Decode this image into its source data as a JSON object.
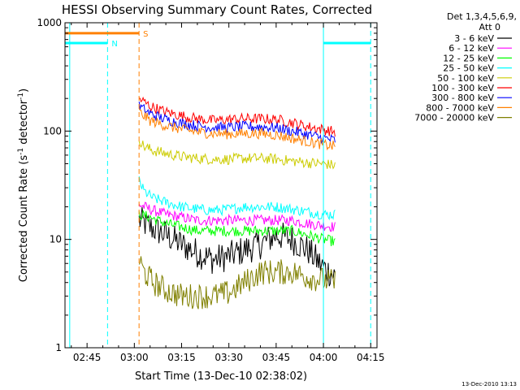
{
  "chart_data": {
    "type": "line",
    "title": "HESSI Observing Summary Count Rates, Corrected",
    "xlabel": "Start Time (13-Dec-10 02:38:02)",
    "ylabel": "Corrected Count Rate (s",
    "ylabel_sup1": "-1",
    "ylabel_mid": " detector",
    "ylabel_sup2": "-1",
    "ylabel_end": ")",
    "yscale": "log",
    "ylim": [
      1,
      1000
    ],
    "x_tick_values": [
      45,
      60,
      75,
      90,
      105,
      120,
      135
    ],
    "x_tick_labels": [
      "02:45",
      "03:00",
      "03:15",
      "03:30",
      "03:45",
      "04:00",
      "04:15"
    ],
    "xlim": [
      38,
      137
    ],
    "y_tick_values": [
      1,
      10,
      100,
      1000
    ],
    "y_tick_labels": [
      "1",
      "10",
      "100",
      "1000"
    ],
    "legend_title_1": "Det 1,3,4,5,6,9,",
    "legend_title_2": "Att 0",
    "legend_placement": "right-outside",
    "footer_date": "13-Dec-2010 13:13",
    "flags": [
      {
        "label": "N",
        "color": "#00ffff",
        "level": 650,
        "segments": [
          [
            38,
            51.5
          ],
          [
            120,
            135
          ]
        ]
      },
      {
        "label": "S",
        "color": "#ff8000",
        "level": 800,
        "segments": [
          [
            38,
            61.5
          ]
        ]
      }
    ],
    "vertical_markers": [
      {
        "x": 39.5,
        "color": "#00ffff",
        "style": "solid"
      },
      {
        "x": 51.5,
        "color": "#00ffff",
        "style": "dashed"
      },
      {
        "x": 61.5,
        "color": "#ff8000",
        "style": "dashed"
      },
      {
        "x": 120,
        "color": "#00ffff",
        "style": "solid"
      },
      {
        "x": 135,
        "color": "#00ffff",
        "style": "dashed"
      }
    ],
    "series": [
      {
        "name": "3 - 6 keV",
        "color": "#000000",
        "x": [
          61.5,
          65,
          70,
          75,
          80,
          85,
          90,
          95,
          100,
          105,
          110,
          115,
          120,
          124
        ],
        "values": [
          15,
          13,
          11,
          9,
          7.5,
          6.5,
          7,
          8,
          9,
          11,
          10,
          8,
          5.5,
          4.5
        ]
      },
      {
        "name": "6 - 12 keV",
        "color": "#ff00ff",
        "x": [
          61.5,
          65,
          70,
          75,
          80,
          85,
          90,
          95,
          100,
          105,
          110,
          115,
          120,
          124
        ],
        "values": [
          21,
          19,
          17,
          16,
          15,
          15,
          15,
          15,
          15,
          15,
          15,
          14,
          13.5,
          13
        ]
      },
      {
        "name": "12 - 25 keV",
        "color": "#00ff00",
        "x": [
          61.5,
          65,
          70,
          75,
          80,
          85,
          90,
          95,
          100,
          105,
          110,
          115,
          120,
          124
        ],
        "values": [
          17,
          16,
          14,
          13,
          12,
          12,
          12,
          12,
          12,
          12,
          12,
          11,
          10,
          9.5
        ]
      },
      {
        "name": "25 - 50 keV",
        "color": "#00ffff",
        "x": [
          61.5,
          63,
          66,
          70,
          75,
          80,
          85,
          90,
          95,
          100,
          105,
          110,
          115,
          120,
          124
        ],
        "values": [
          35,
          28,
          24,
          22,
          20,
          19,
          18.5,
          19,
          20,
          20,
          20,
          19,
          18,
          17,
          17
        ]
      },
      {
        "name": "50 - 100 keV",
        "color": "#cccc00",
        "x": [
          61.5,
          63,
          66,
          70,
          75,
          80,
          85,
          90,
          95,
          100,
          105,
          110,
          115,
          120,
          124
        ],
        "values": [
          85,
          72,
          66,
          62,
          58,
          56,
          55,
          55,
          56,
          56,
          55,
          53,
          51,
          50,
          48
        ]
      },
      {
        "name": "100 - 300 keV",
        "color": "#ff0000",
        "x": [
          61.5,
          65,
          70,
          75,
          80,
          85,
          90,
          95,
          100,
          105,
          110,
          115,
          120,
          124
        ],
        "values": [
          200,
          170,
          150,
          138,
          130,
          125,
          128,
          130,
          130,
          128,
          120,
          110,
          103,
          98
        ]
      },
      {
        "name": "300 - 800 keV",
        "color": "#0000ff",
        "x": [
          61.5,
          65,
          70,
          75,
          80,
          85,
          90,
          95,
          100,
          105,
          110,
          115,
          120,
          124
        ],
        "values": [
          170,
          145,
          128,
          118,
          112,
          108,
          108,
          110,
          110,
          107,
          100,
          93,
          86,
          82
        ]
      },
      {
        "name": "800 - 7000 keV",
        "color": "#ff8000",
        "x": [
          61.5,
          65,
          70,
          75,
          80,
          85,
          90,
          95,
          100,
          105,
          110,
          115,
          120,
          124
        ],
        "values": [
          150,
          125,
          112,
          104,
          98,
          95,
          94,
          95,
          95,
          92,
          86,
          80,
          75,
          72
        ]
      },
      {
        "name": "7000 - 20000 keV",
        "color": "#808000",
        "x": [
          61.5,
          63,
          66,
          70,
          75,
          80,
          85,
          90,
          95,
          100,
          105,
          110,
          115,
          120,
          124
        ],
        "values": [
          6.5,
          5,
          4,
          3.4,
          3,
          3,
          3,
          3.2,
          4,
          5,
          5,
          5,
          4.5,
          4.2,
          4
        ]
      }
    ]
  }
}
